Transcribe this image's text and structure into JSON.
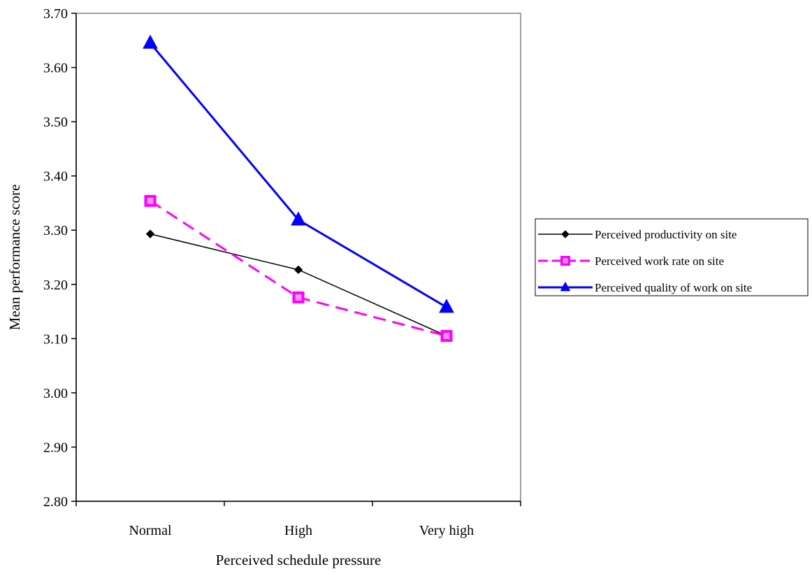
{
  "chart_data": {
    "type": "line",
    "title": "",
    "xlabel": "Perceived schedule pressure",
    "ylabel": "Mean performance score",
    "categories": [
      "Normal",
      "High",
      "Very high"
    ],
    "ylim": [
      2.8,
      3.7
    ],
    "yticks": [
      "2.80",
      "2.90",
      "3.00",
      "3.10",
      "3.20",
      "3.30",
      "3.40",
      "3.50",
      "3.60",
      "3.70"
    ],
    "grid": false,
    "legend_position": "right",
    "series": [
      {
        "name": "Perceived productivity on site",
        "values": [
          3.293,
          3.227,
          3.105
        ],
        "color": "#000000",
        "marker": "diamond",
        "line_style": "solid"
      },
      {
        "name": "Perceived work rate on site",
        "values": [
          3.354,
          3.176,
          3.105
        ],
        "color": "#ff00ff",
        "marker": "square",
        "line_style": "dashed"
      },
      {
        "name": "Perceived quality of work on site",
        "values": [
          3.645,
          3.319,
          3.158
        ],
        "color": "#0000ff",
        "marker": "triangle",
        "line_style": "solid"
      }
    ]
  }
}
